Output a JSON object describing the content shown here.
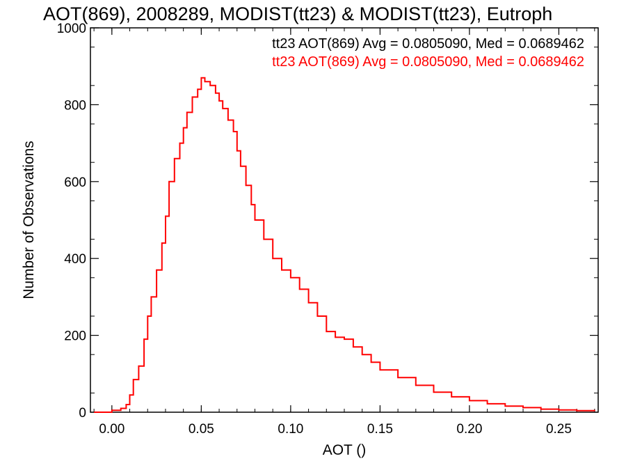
{
  "chart_data": {
    "type": "line",
    "title": "AOT(869), 2008289, MODIST(tt23) & MODIST(tt23), Eutroph",
    "xlabel": "AOT ()",
    "ylabel": "Number of Observations",
    "xlim": [
      -0.012,
      0.272
    ],
    "ylim": [
      0,
      1000
    ],
    "x_ticks": [
      0.0,
      0.05,
      0.1,
      0.15,
      0.2,
      0.25
    ],
    "x_tick_labels": [
      "0.00",
      "0.05",
      "0.10",
      "0.15",
      "0.20",
      "0.25"
    ],
    "y_ticks": [
      0,
      200,
      400,
      600,
      800,
      1000
    ],
    "y_tick_labels": [
      "0",
      "200",
      "400",
      "600",
      "800",
      "1000"
    ],
    "grid": false,
    "annotations": [
      {
        "text": "tt23 AOT(869) Avg = 0.0805090, Med = 0.0689462",
        "color": "#000000"
      },
      {
        "text": "tt23 AOT(869) Avg = 0.0805090, Med = 0.0689462",
        "color": "#ff0000"
      }
    ],
    "series": [
      {
        "color": "#ff0000",
        "x": [
          -0.01,
          -0.005,
          0.0,
          0.005,
          0.008,
          0.01,
          0.012,
          0.015,
          0.018,
          0.02,
          0.022,
          0.025,
          0.028,
          0.03,
          0.032,
          0.035,
          0.038,
          0.04,
          0.042,
          0.045,
          0.048,
          0.05,
          0.052,
          0.055,
          0.058,
          0.06,
          0.062,
          0.065,
          0.068,
          0.07,
          0.072,
          0.075,
          0.078,
          0.08,
          0.085,
          0.09,
          0.095,
          0.1,
          0.105,
          0.11,
          0.115,
          0.12,
          0.125,
          0.13,
          0.135,
          0.14,
          0.145,
          0.15,
          0.16,
          0.17,
          0.18,
          0.19,
          0.2,
          0.21,
          0.22,
          0.23,
          0.24,
          0.25,
          0.26,
          0.27
        ],
        "y": [
          0,
          0,
          5,
          10,
          20,
          45,
          85,
          120,
          190,
          250,
          300,
          370,
          440,
          510,
          600,
          660,
          700,
          740,
          780,
          820,
          840,
          870,
          860,
          850,
          830,
          810,
          790,
          760,
          730,
          680,
          640,
          590,
          540,
          500,
          450,
          400,
          370,
          350,
          320,
          285,
          250,
          210,
          195,
          190,
          170,
          150,
          130,
          110,
          90,
          70,
          52,
          40,
          30,
          22,
          16,
          12,
          8,
          6,
          4,
          3
        ]
      }
    ]
  }
}
